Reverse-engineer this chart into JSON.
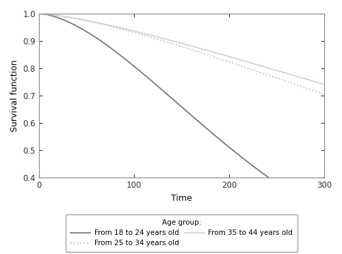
{
  "title": "Age group:",
  "xlabel": "Time",
  "ylabel": "Survival function",
  "xlim": [
    0,
    300
  ],
  "ylim": [
    0.4,
    1.0
  ],
  "xticks": [
    0,
    100,
    200,
    300
  ],
  "yticks": [
    0.4,
    0.5,
    0.6,
    0.7,
    0.8,
    0.9,
    1.0
  ],
  "curves": [
    {
      "label": "From 18 to 24 years old",
      "color": "#777777",
      "linestyle": "solid",
      "linewidth": 1.3,
      "weibull_scale": 255,
      "weibull_shape": 1.65
    },
    {
      "label": "From 25 to 34 years old",
      "color": "#bbbbbb",
      "linestyle": "dotted",
      "linewidth": 1.3,
      "weibull_scale": 620,
      "weibull_shape": 1.45
    },
    {
      "label": "From 35 to 44 years old",
      "color": "#cccccc",
      "linestyle": "solid",
      "linewidth": 1.1,
      "weibull_scale": 720,
      "weibull_shape": 1.38
    }
  ],
  "legend_box": true,
  "background_color": "#ffffff",
  "figure_width": 5.0,
  "figure_height": 3.72,
  "dpi": 100
}
